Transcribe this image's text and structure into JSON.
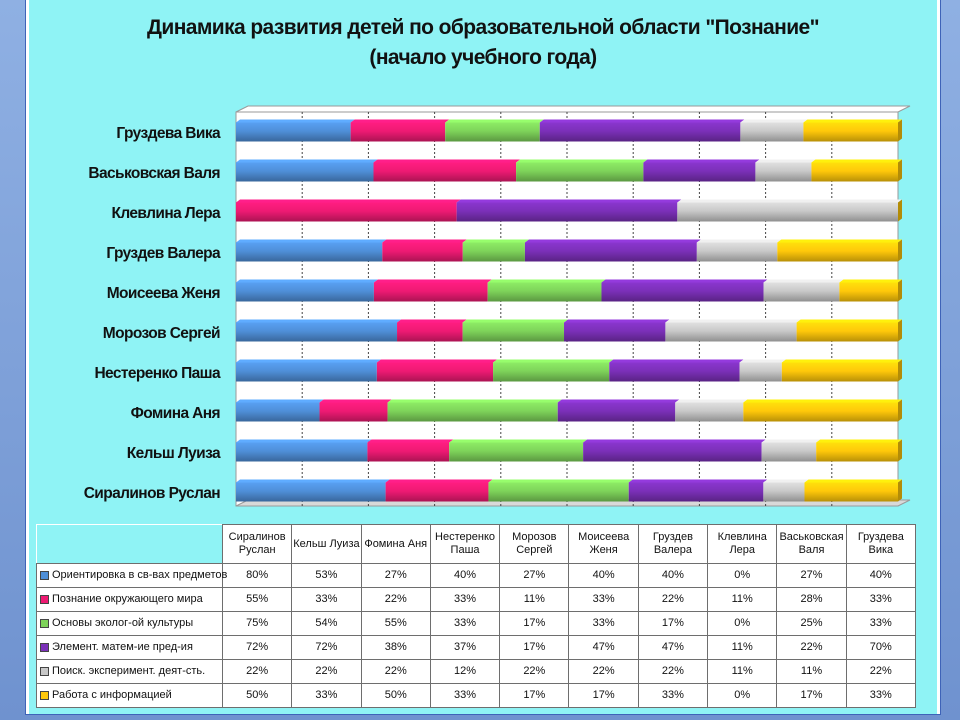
{
  "title_line1": "Динамика развития детей по образовательной области \"Познание\"",
  "title_line2": "(начало учебного года)",
  "chart_data": {
    "type": "bar",
    "orientation": "horizontal",
    "stacked": "100%",
    "categories": [
      "Сиралинов Руслан",
      "Кельш Луиза",
      "Фомина Аня",
      "Нестеренко Паша",
      "Морозов Сергей",
      "Моисеева Женя",
      "Груздев Валера",
      "Клевлина Лера",
      "Васьковская Валя",
      "Груздева Вика"
    ],
    "chart_labels": [
      "Сиралинов Руслан",
      "Кельш Луиза",
      "Фомина Аня",
      "Нестеренко Паша",
      "Морозов Сергей",
      "Моисеева Женя",
      "Груздев Валера",
      "Клевлина Лера",
      "Васьковская Валя",
      "Груздева  Вика"
    ],
    "table_headers": [
      "Сиралинов Руслан",
      "Кельш Луиза",
      "Фомина Аня",
      "Нестеренко Паша",
      "Морозов Сергей",
      "Моисеева Женя",
      "Груздев Валера",
      "Клевлина Лера",
      "Васьковская Валя",
      "Груздева Вика"
    ],
    "series": [
      {
        "name": "Ориентировка в св-вах предметов",
        "color": "#4f8fd8",
        "values": [
          80,
          53,
          27,
          40,
          27,
          40,
          40,
          0,
          27,
          40
        ],
        "labels": [
          "80%",
          "53%",
          "27%",
          "40%",
          "27%",
          "40%",
          "40%",
          "0%",
          "27%",
          "40%"
        ]
      },
      {
        "name": "Познание окружающего мира",
        "color": "#ee1a73",
        "values": [
          55,
          33,
          22,
          33,
          11,
          33,
          22,
          11,
          28,
          33
        ],
        "labels": [
          "55%",
          "33%",
          "22%",
          "33%",
          "11%",
          "33%",
          "22%",
          "11%",
          "28%",
          "33%"
        ]
      },
      {
        "name": "Основы эколог-ой культуры",
        "color": "#7ed35a",
        "values": [
          75,
          54,
          55,
          33,
          17,
          33,
          17,
          0,
          25,
          33
        ],
        "labels": [
          "75%",
          "54%",
          "55%",
          "33%",
          "17%",
          "33%",
          "17%",
          "0%",
          "25%",
          "33%"
        ]
      },
      {
        "name": "Элемент. матем-ие пред-ия",
        "color": "#7b30b8",
        "values": [
          72,
          72,
          38,
          37,
          17,
          47,
          47,
          11,
          22,
          70
        ],
        "labels": [
          "72%",
          "72%",
          "38%",
          "37%",
          "17%",
          "47%",
          "47%",
          "11%",
          "22%",
          "70%"
        ]
      },
      {
        "name": "Поиск. эксперимент. деят-сть.",
        "color": "#c8c8c8",
        "values": [
          22,
          22,
          22,
          12,
          22,
          22,
          22,
          11,
          11,
          22
        ],
        "labels": [
          "22%",
          "22%",
          "22%",
          "12%",
          "22%",
          "22%",
          "22%",
          "11%",
          "11%",
          "22%"
        ]
      },
      {
        "name": "Работа с информацией",
        "color": "#ffc80a",
        "values": [
          50,
          33,
          50,
          33,
          17,
          17,
          33,
          0,
          17,
          33
        ],
        "labels": [
          "50%",
          "33%",
          "50%",
          "33%",
          "17%",
          "17%",
          "33%",
          "0%",
          "17%",
          "33%"
        ]
      }
    ],
    "xlim": [
      0,
      100
    ],
    "grid": "vertical",
    "legend": "data-table"
  }
}
